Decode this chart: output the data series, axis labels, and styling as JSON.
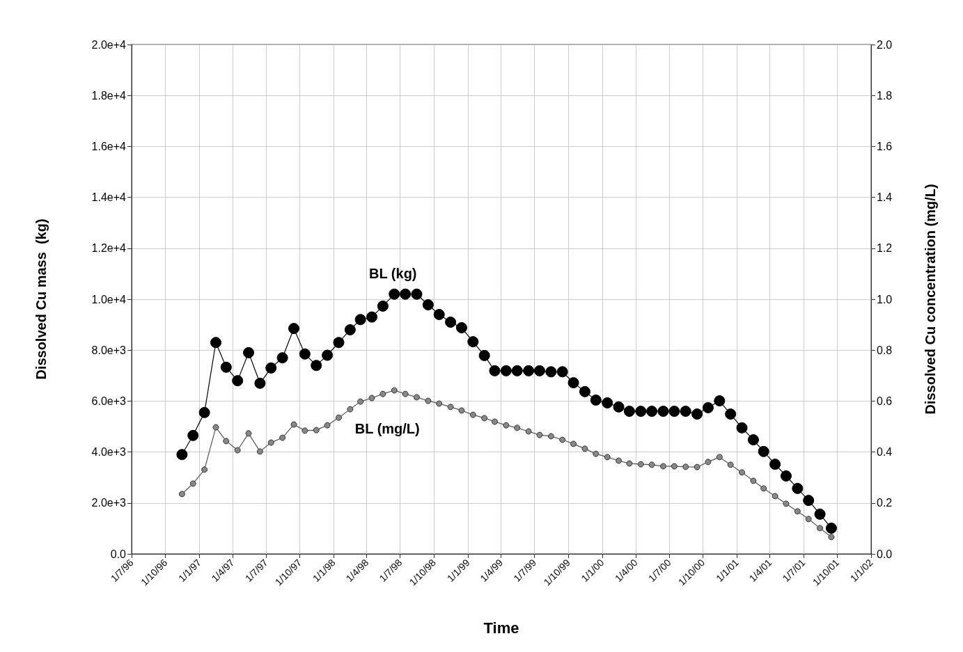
{
  "chart_data": {
    "type": "line",
    "xlabel": "Time",
    "ylabel": "Dissolved Cu mass  (kg)",
    "y2label": "Dissolved Cu concentration (mg/L)",
    "x": [
      "1996-11-15",
      "1996-12-15",
      "1997-01-15",
      "1997-02-15",
      "1997-03-15",
      "1997-04-15",
      "1997-05-15",
      "1997-06-15",
      "1997-07-15",
      "1997-08-15",
      "1997-09-15",
      "1997-10-15",
      "1997-11-15",
      "1997-12-15",
      "1998-01-15",
      "1998-02-15",
      "1998-03-15",
      "1998-04-15",
      "1998-05-15",
      "1998-06-15",
      "1998-07-15",
      "1998-08-15",
      "1998-09-15",
      "1998-10-15",
      "1998-11-15",
      "1998-12-15",
      "1999-01-15",
      "1999-02-15",
      "1999-03-15",
      "1999-04-15",
      "1999-05-15",
      "1999-06-15",
      "1999-07-15",
      "1999-08-15",
      "1999-09-15",
      "1999-10-15",
      "1999-11-15",
      "1999-12-15",
      "2000-01-15",
      "2000-02-15",
      "2000-03-15",
      "2000-04-15",
      "2000-05-15",
      "2000-06-15",
      "2000-07-15",
      "2000-08-15",
      "2000-09-15",
      "2000-10-15",
      "2000-11-15",
      "2000-12-15",
      "2001-01-15",
      "2001-02-15",
      "2001-03-15",
      "2001-04-15",
      "2001-05-15",
      "2001-06-15",
      "2001-07-15",
      "2001-08-15",
      "2001-09-15"
    ],
    "series": [
      {
        "name": "BL (kg)",
        "color": "#000000",
        "marker": "circle",
        "values": [
          3900,
          4650,
          5550,
          8300,
          7330,
          6800,
          7900,
          6700,
          7300,
          7700,
          8850,
          7850,
          7400,
          7800,
          8300,
          8800,
          9200,
          9300,
          9730,
          10200,
          10200,
          10200,
          9780,
          9400,
          9100,
          8880,
          8330,
          7790,
          7190,
          7190,
          7190,
          7190,
          7190,
          7150,
          7150,
          6720,
          6370,
          6040,
          5930,
          5770,
          5600,
          5600,
          5600,
          5600,
          5600,
          5600,
          5490,
          5740,
          6010,
          5490,
          4950,
          4480,
          4020,
          3520,
          3060,
          2570,
          2100,
          1560,
          1010
        ]
      },
      {
        "name": "BL (mg/L)",
        "color": "#888888",
        "axis": "y2",
        "marker": "circle",
        "values": [
          0.235,
          0.276,
          0.331,
          0.497,
          0.443,
          0.407,
          0.473,
          0.402,
          0.437,
          0.456,
          0.508,
          0.484,
          0.486,
          0.505,
          0.535,
          0.568,
          0.598,
          0.612,
          0.628,
          0.642,
          0.628,
          0.615,
          0.601,
          0.59,
          0.577,
          0.563,
          0.546,
          0.533,
          0.519,
          0.505,
          0.495,
          0.481,
          0.467,
          0.462,
          0.448,
          0.432,
          0.413,
          0.393,
          0.38,
          0.366,
          0.355,
          0.352,
          0.35,
          0.344,
          0.344,
          0.342,
          0.341,
          0.361,
          0.38,
          0.35,
          0.32,
          0.287,
          0.257,
          0.227,
          0.197,
          0.167,
          0.137,
          0.101,
          0.066
        ]
      }
    ],
    "xlim": [
      "1996-07-01",
      "2002-01-01"
    ],
    "xticks": [
      {
        "value": "1996-07-01",
        "label": "1/7/96"
      },
      {
        "value": "1996-10-01",
        "label": "1/10/96"
      },
      {
        "value": "1997-01-01",
        "label": "1/1/97"
      },
      {
        "value": "1997-04-01",
        "label": "1/4/97"
      },
      {
        "value": "1997-07-01",
        "label": "1/7/97"
      },
      {
        "value": "1997-10-01",
        "label": "1/10/97"
      },
      {
        "value": "1998-01-01",
        "label": "1/1/98"
      },
      {
        "value": "1998-04-01",
        "label": "1/4/98"
      },
      {
        "value": "1998-07-01",
        "label": "1/7/98"
      },
      {
        "value": "1998-10-01",
        "label": "1/10/98"
      },
      {
        "value": "1999-01-01",
        "label": "1/1/99"
      },
      {
        "value": "1999-04-01",
        "label": "1/4/99"
      },
      {
        "value": "1999-07-01",
        "label": "1/7/99"
      },
      {
        "value": "1999-10-01",
        "label": "1/10/99"
      },
      {
        "value": "2000-01-01",
        "label": "1/1/00"
      },
      {
        "value": "2000-04-01",
        "label": "1/4/00"
      },
      {
        "value": "2000-07-01",
        "label": "1/7/00"
      },
      {
        "value": "2000-10-01",
        "label": "1/10/00"
      },
      {
        "value": "2001-01-01",
        "label": "1/1/01"
      },
      {
        "value": "2001-04-01",
        "label": "1/4/01"
      },
      {
        "value": "2001-07-01",
        "label": "1/7/01"
      },
      {
        "value": "2001-10-01",
        "label": "1/10/01"
      },
      {
        "value": "2002-01-01",
        "label": "1/1/02"
      }
    ],
    "ylim": [
      0,
      20000
    ],
    "yticks": [
      {
        "value": 0,
        "label": "0.0"
      },
      {
        "value": 2000,
        "label": "2.0e+3"
      },
      {
        "value": 4000,
        "label": "4.0e+3"
      },
      {
        "value": 6000,
        "label": "6.0e+3"
      },
      {
        "value": 8000,
        "label": "8.0e+3"
      },
      {
        "value": 10000,
        "label": "1.0e+4"
      },
      {
        "value": 12000,
        "label": "1.2e+4"
      },
      {
        "value": 14000,
        "label": "1.4e+4"
      },
      {
        "value": 16000,
        "label": "1.6e+4"
      },
      {
        "value": 18000,
        "label": "1.8e+4"
      },
      {
        "value": 20000,
        "label": "2.0e+4"
      }
    ],
    "y2lim": [
      0,
      2
    ],
    "y2ticks": [
      {
        "value": 0,
        "label": "0.0"
      },
      {
        "value": 0.2,
        "label": "0.2"
      },
      {
        "value": 0.4,
        "label": "0.4"
      },
      {
        "value": 0.6,
        "label": "0.6"
      },
      {
        "value": 0.8,
        "label": "0.8"
      },
      {
        "value": 1,
        "label": "1.0"
      },
      {
        "value": 1.2,
        "label": "1.2"
      },
      {
        "value": 1.4,
        "label": "1.4"
      },
      {
        "value": 1.6,
        "label": "1.6"
      },
      {
        "value": 1.8,
        "label": "1.8"
      },
      {
        "value": 2,
        "label": "2.0"
      }
    ],
    "grid": true,
    "legend": false,
    "line_style": "solid"
  }
}
